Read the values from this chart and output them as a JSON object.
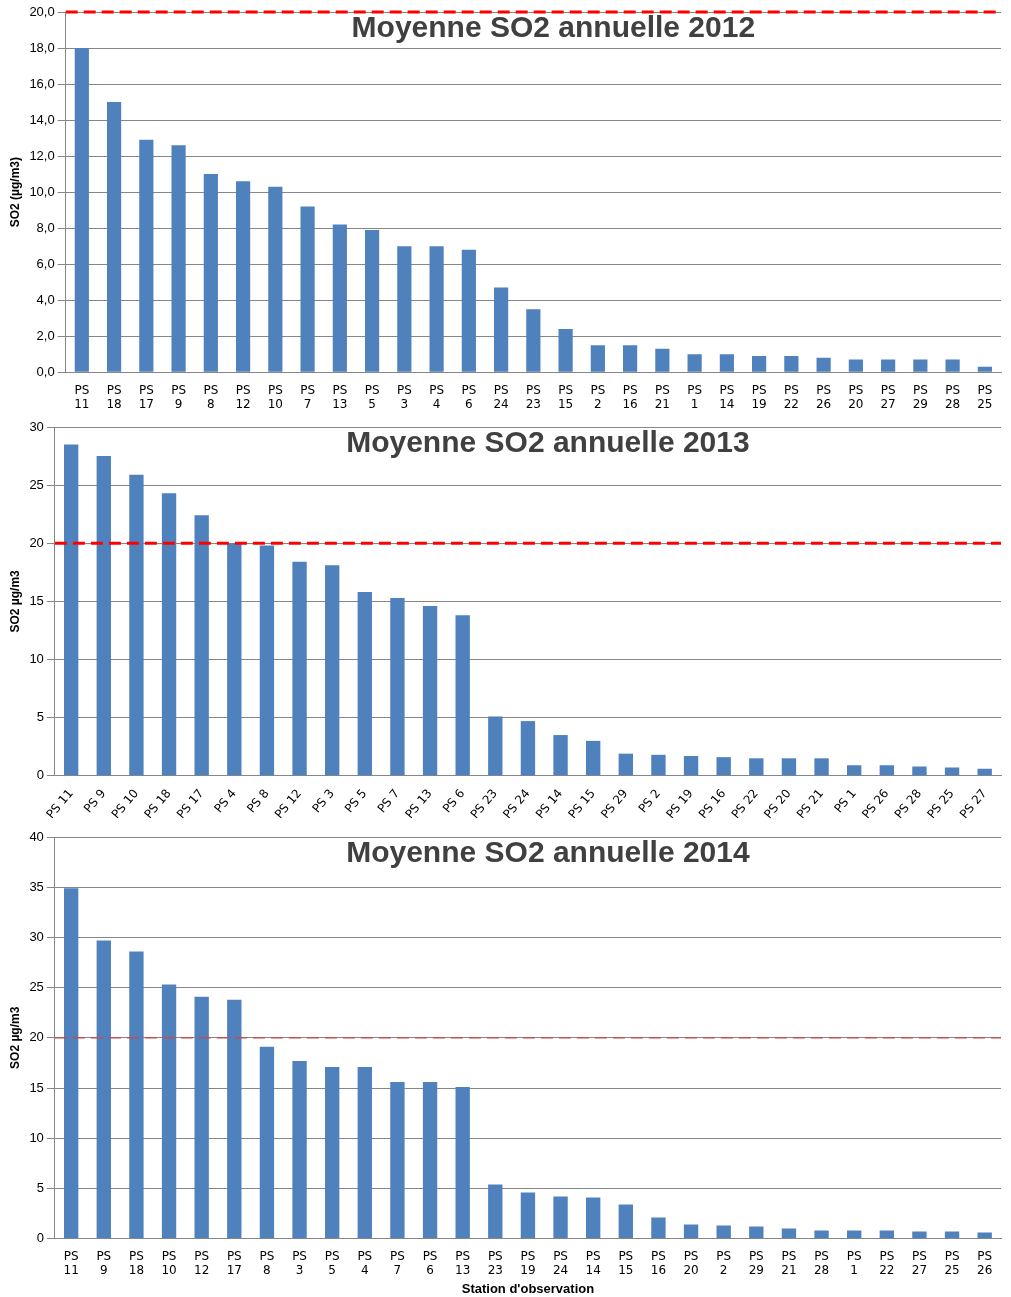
{
  "chart_data": [
    {
      "type": "bar",
      "title": "Moyenne SO2 annuelle 2012",
      "ylabel": "SO2 (µg/m3)",
      "categories": [
        "PS 11",
        "PS 18",
        "PS 17",
        "PS 9",
        "PS 8",
        "PS 12",
        "PS 10",
        "PS 7",
        "PS 13",
        "PS 5",
        "PS 3",
        "PS 4",
        "PS 6",
        "PS 24",
        "PS 23",
        "PS 15",
        "PS 2",
        "PS 16",
        "PS 21",
        "PS 1",
        "PS 14",
        "PS 19",
        "PS 22",
        "PS 26",
        "PS 20",
        "PS 27",
        "PS 29",
        "PS 28",
        "PS 25"
      ],
      "values": [
        18.0,
        15.0,
        12.9,
        12.6,
        11.0,
        10.6,
        10.3,
        9.2,
        8.2,
        7.9,
        7.0,
        7.0,
        6.8,
        4.7,
        3.5,
        2.4,
        1.5,
        1.5,
        1.3,
        1.0,
        1.0,
        0.9,
        0.9,
        0.8,
        0.7,
        0.7,
        0.7,
        0.7,
        0.3
      ],
      "color": "#4f81bd",
      "ylim": [
        0,
        20
      ],
      "yticks": [
        {
          "value": 0,
          "label": "0,0"
        },
        {
          "value": 2,
          "label": "2,0"
        },
        {
          "value": 4,
          "label": "4,0"
        },
        {
          "value": 6,
          "label": "6,0"
        },
        {
          "value": 8,
          "label": "8,0"
        },
        {
          "value": 10,
          "label": "10,0"
        },
        {
          "value": 12,
          "label": "12,0"
        },
        {
          "value": 14,
          "label": "14,0"
        },
        {
          "value": 16,
          "label": "16,0"
        },
        {
          "value": 18,
          "label": "18,0"
        },
        {
          "value": 20,
          "label": "20,0"
        }
      ],
      "grid": "y",
      "legend": false,
      "ref_lines": [
        {
          "axis": "y",
          "value": 20,
          "color": "#ff0000",
          "line_style": "dashed"
        }
      ]
    },
    {
      "type": "bar",
      "title": "Moyenne SO2 annuelle 2013",
      "ylabel": "SO2 µg/m3",
      "categories": [
        "PS 11",
        "PS 9",
        "PS 10",
        "PS 18",
        "PS 17",
        "PS 4",
        "PS 8",
        "PS 12",
        "PS 3",
        "PS 5",
        "PS 7",
        "PS 13",
        "PS 6",
        "PS 23",
        "PS 24",
        "PS 14",
        "PS 15",
        "PS 29",
        "PS 2",
        "PS 19",
        "PS 16",
        "PS 22",
        "PS 20",
        "PS 21",
        "PS 1",
        "PS 26",
        "PS 28",
        "PS 25",
        "PS 27"
      ],
      "values": [
        28.5,
        27.5,
        25.9,
        24.3,
        22.4,
        20.0,
        19.8,
        18.4,
        18.1,
        15.8,
        15.3,
        14.6,
        13.8,
        5.1,
        4.7,
        3.5,
        3.0,
        1.9,
        1.8,
        1.7,
        1.6,
        1.5,
        1.5,
        1.5,
        0.9,
        0.9,
        0.8,
        0.7,
        0.6
      ],
      "color": "#4f81bd",
      "ylim": [
        0,
        30
      ],
      "yticks": [
        0,
        5,
        10,
        15,
        20,
        25,
        30
      ],
      "grid": "y",
      "legend": false,
      "ref_lines": [
        {
          "axis": "y",
          "value": 20,
          "color": "#ff0000",
          "line_style": "dashed"
        }
      ]
    },
    {
      "type": "bar",
      "title": "Moyenne SO2 annuelle 2014",
      "ylabel": "SO2 µg/m3",
      "xlabel": "Station d'observation",
      "categories": [
        "PS 11",
        "PS 9",
        "PS 18",
        "PS 10",
        "PS 12",
        "PS 17",
        "PS 8",
        "PS 3",
        "PS 5",
        "PS 4",
        "PS 7",
        "PS 6",
        "PS 13",
        "PS 23",
        "PS 19",
        "PS 24",
        "PS 14",
        "PS 15",
        "PS 16",
        "PS 20",
        "PS 2",
        "PS 29",
        "PS 21",
        "PS 28",
        "PS 1",
        "PS 22",
        "PS 27",
        "PS 25",
        "PS 26"
      ],
      "values": [
        34.9,
        29.7,
        28.6,
        25.3,
        24.1,
        23.8,
        19.1,
        17.7,
        17.1,
        17.1,
        15.6,
        15.6,
        15.1,
        5.4,
        4.6,
        4.2,
        4.1,
        3.4,
        2.1,
        1.4,
        1.3,
        1.2,
        1.0,
        0.8,
        0.8,
        0.8,
        0.7,
        0.7,
        0.6
      ],
      "color": "#4f81bd",
      "ylim": [
        0,
        40
      ],
      "yticks": [
        0,
        5,
        10,
        15,
        20,
        25,
        30,
        35,
        40
      ],
      "grid": "y",
      "legend": false,
      "ref_lines": [
        {
          "axis": "y",
          "value": 20,
          "color": "#c0504d",
          "line_style": "dashed"
        }
      ]
    }
  ]
}
